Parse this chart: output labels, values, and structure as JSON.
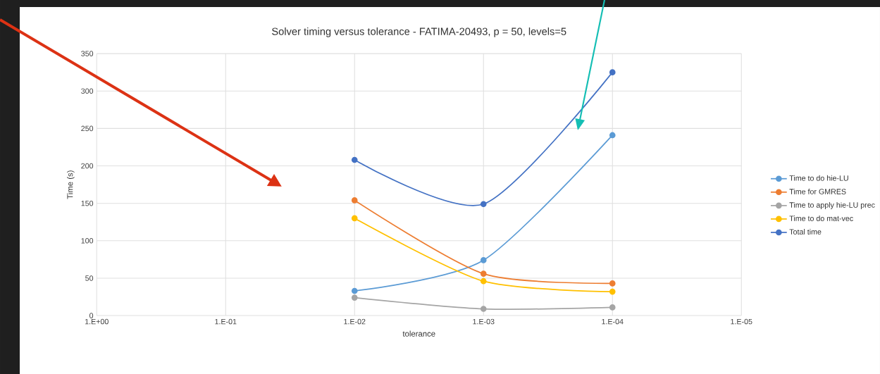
{
  "chart_data": {
    "type": "line",
    "title": "Solver timing versus tolerance - FATIMA-20493, p = 50, levels=5",
    "xlabel": "tolerance",
    "ylabel": "Time (s)",
    "categories": [
      "1.E+00",
      "1.E-01",
      "1.E-02",
      "1.E-03",
      "1.E-04",
      "1.E-05"
    ],
    "series": [
      {
        "name": "Time to do hie-LU",
        "color": "#5b9bd5",
        "values": [
          null,
          null,
          33,
          74,
          241,
          null
        ]
      },
      {
        "name": "Time for GMRES",
        "color": "#ed7d31",
        "values": [
          null,
          null,
          154,
          56,
          43,
          null
        ]
      },
      {
        "name": "Time to apply hie-LU prec",
        "color": "#a5a5a5",
        "values": [
          null,
          null,
          24,
          9,
          11,
          null
        ]
      },
      {
        "name": "Time to do mat-vec",
        "color": "#ffc000",
        "values": [
          null,
          null,
          130,
          46,
          32,
          null
        ]
      },
      {
        "name": "Total time",
        "color": "#4472c4",
        "values": [
          null,
          null,
          208,
          149,
          325,
          null
        ]
      }
    ],
    "ylim": [
      0,
      350
    ],
    "yticks": [
      0,
      50,
      100,
      150,
      200,
      250,
      300,
      350
    ],
    "grid": true,
    "legend": "right",
    "marker": "circle",
    "line_style": "solid"
  }
}
